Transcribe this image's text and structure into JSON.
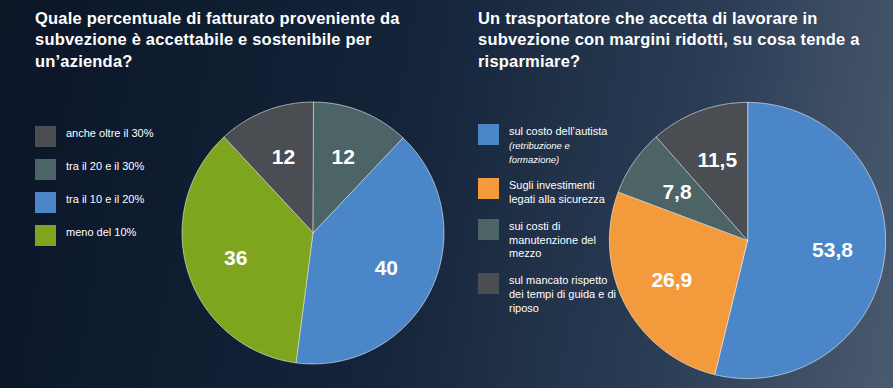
{
  "chart_data": [
    {
      "type": "pie",
      "title": "Quale percentuale di fatturato proveniente da subvezione è accettabile e sostenibile per un’azienda?",
      "categories": [
        "anche oltre il 30%",
        "tra il 20 e il 30%",
        "tra il 10 e il 20%",
        "meno del 10%"
      ],
      "values": [
        12,
        12,
        40,
        36
      ],
      "colors": [
        "#4a4d52",
        "#4d6466",
        "#4a86c8",
        "#7fa51f"
      ],
      "data_labels": true,
      "legend": "left"
    },
    {
      "type": "pie",
      "title": "Un trasportatore che accetta di lavorare in subvezione con margini ridotti, su cosa tende a risparmiare?",
      "categories": [
        "sul costo dell’autista (retribuzione e formazione)",
        "Sugli investimenti legati alla sicurezza",
        "sui costi di manutenzione del mezzo",
        "sul mancato rispetto dei tempi di guida e di riposo"
      ],
      "values": [
        53.8,
        26.9,
        7.8,
        11.5
      ],
      "value_labels": [
        "53,8",
        "26,9",
        "7,8",
        "11,5"
      ],
      "colors": [
        "#4a86c8",
        "#f39a3c",
        "#4d6466",
        "#4a4d52"
      ],
      "data_labels": true,
      "legend": "left"
    }
  ]
}
